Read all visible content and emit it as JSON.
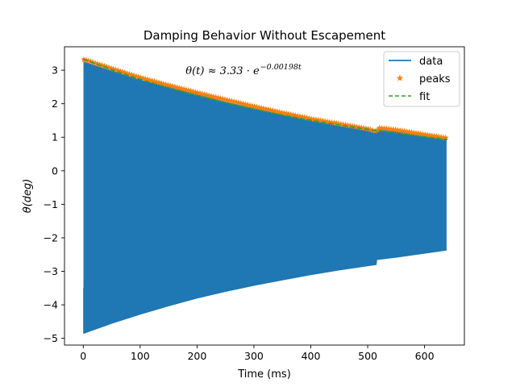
{
  "chart_data": {
    "type": "line",
    "title": "Damping Behavior Without Escapement",
    "xlabel": "Time (ms)",
    "ylabel": "θ(deg)",
    "xlim": [
      -33,
      670
    ],
    "ylim": [
      -5.2,
      3.7
    ],
    "xticks": [
      0,
      100,
      200,
      300,
      400,
      500,
      600
    ],
    "yticks": [
      -5,
      -4,
      -3,
      -2,
      -1,
      0,
      1,
      2,
      3
    ],
    "tick_labels_x": [
      "0",
      "100",
      "200",
      "300",
      "400",
      "500",
      "600"
    ],
    "tick_labels_y": [
      "−5",
      "−4",
      "−3",
      "−2",
      "−1",
      "0",
      "1",
      "2",
      "3"
    ],
    "annotation": {
      "text_main": "θ(t) ≈ 3.33 · e",
      "text_exp": "−0.00198t",
      "x": 180,
      "y": 2.88
    },
    "legend": {
      "placement": "top-right",
      "entries": [
        {
          "label": "data",
          "style": "line",
          "color": "#1f77b4"
        },
        {
          "label": "peaks",
          "style": "star",
          "color": "#ff7f0e"
        },
        {
          "label": "fit",
          "style": "dashed",
          "color": "#2ca02c"
        }
      ]
    },
    "series": [
      {
        "name": "data",
        "color": "#1f77b4",
        "kind": "oscillation-envelope",
        "upper": [
          [
            1,
            3.25
          ],
          [
            50,
            2.98
          ],
          [
            100,
            2.71
          ],
          [
            150,
            2.5
          ],
          [
            200,
            2.28
          ],
          [
            250,
            2.05
          ],
          [
            300,
            1.86
          ],
          [
            350,
            1.67
          ],
          [
            400,
            1.5
          ],
          [
            450,
            1.33
          ],
          [
            500,
            1.2
          ],
          [
            515,
            1.15
          ],
          [
            516,
            1.25
          ],
          [
            550,
            1.17
          ],
          [
            600,
            1.03
          ],
          [
            638,
            0.95
          ]
        ],
        "lower": [
          [
            1,
            -4.85
          ],
          [
            50,
            -4.55
          ],
          [
            100,
            -4.28
          ],
          [
            150,
            -4.03
          ],
          [
            200,
            -3.8
          ],
          [
            250,
            -3.6
          ],
          [
            300,
            -3.42
          ],
          [
            350,
            -3.26
          ],
          [
            400,
            -3.1
          ],
          [
            450,
            -2.96
          ],
          [
            515,
            -2.8
          ],
          [
            516,
            -2.65
          ],
          [
            550,
            -2.58
          ],
          [
            600,
            -2.46
          ],
          [
            638,
            -2.37
          ]
        ]
      },
      {
        "name": "peaks",
        "color": "#ff7f0e",
        "kind": "markers",
        "points": [
          [
            1,
            3.32
          ],
          [
            50,
            3.05
          ],
          [
            100,
            2.78
          ],
          [
            150,
            2.55
          ],
          [
            200,
            2.33
          ],
          [
            250,
            2.12
          ],
          [
            300,
            1.92
          ],
          [
            350,
            1.73
          ],
          [
            400,
            1.55
          ],
          [
            450,
            1.4
          ],
          [
            500,
            1.25
          ],
          [
            515,
            1.17
          ],
          [
            520,
            1.28
          ],
          [
            550,
            1.22
          ],
          [
            600,
            1.08
          ],
          [
            638,
            0.98
          ]
        ]
      },
      {
        "name": "fit",
        "color": "#2ca02c",
        "kind": "exponential",
        "a": 3.33,
        "b": -0.00198,
        "x_range": [
          0,
          640
        ]
      }
    ]
  }
}
